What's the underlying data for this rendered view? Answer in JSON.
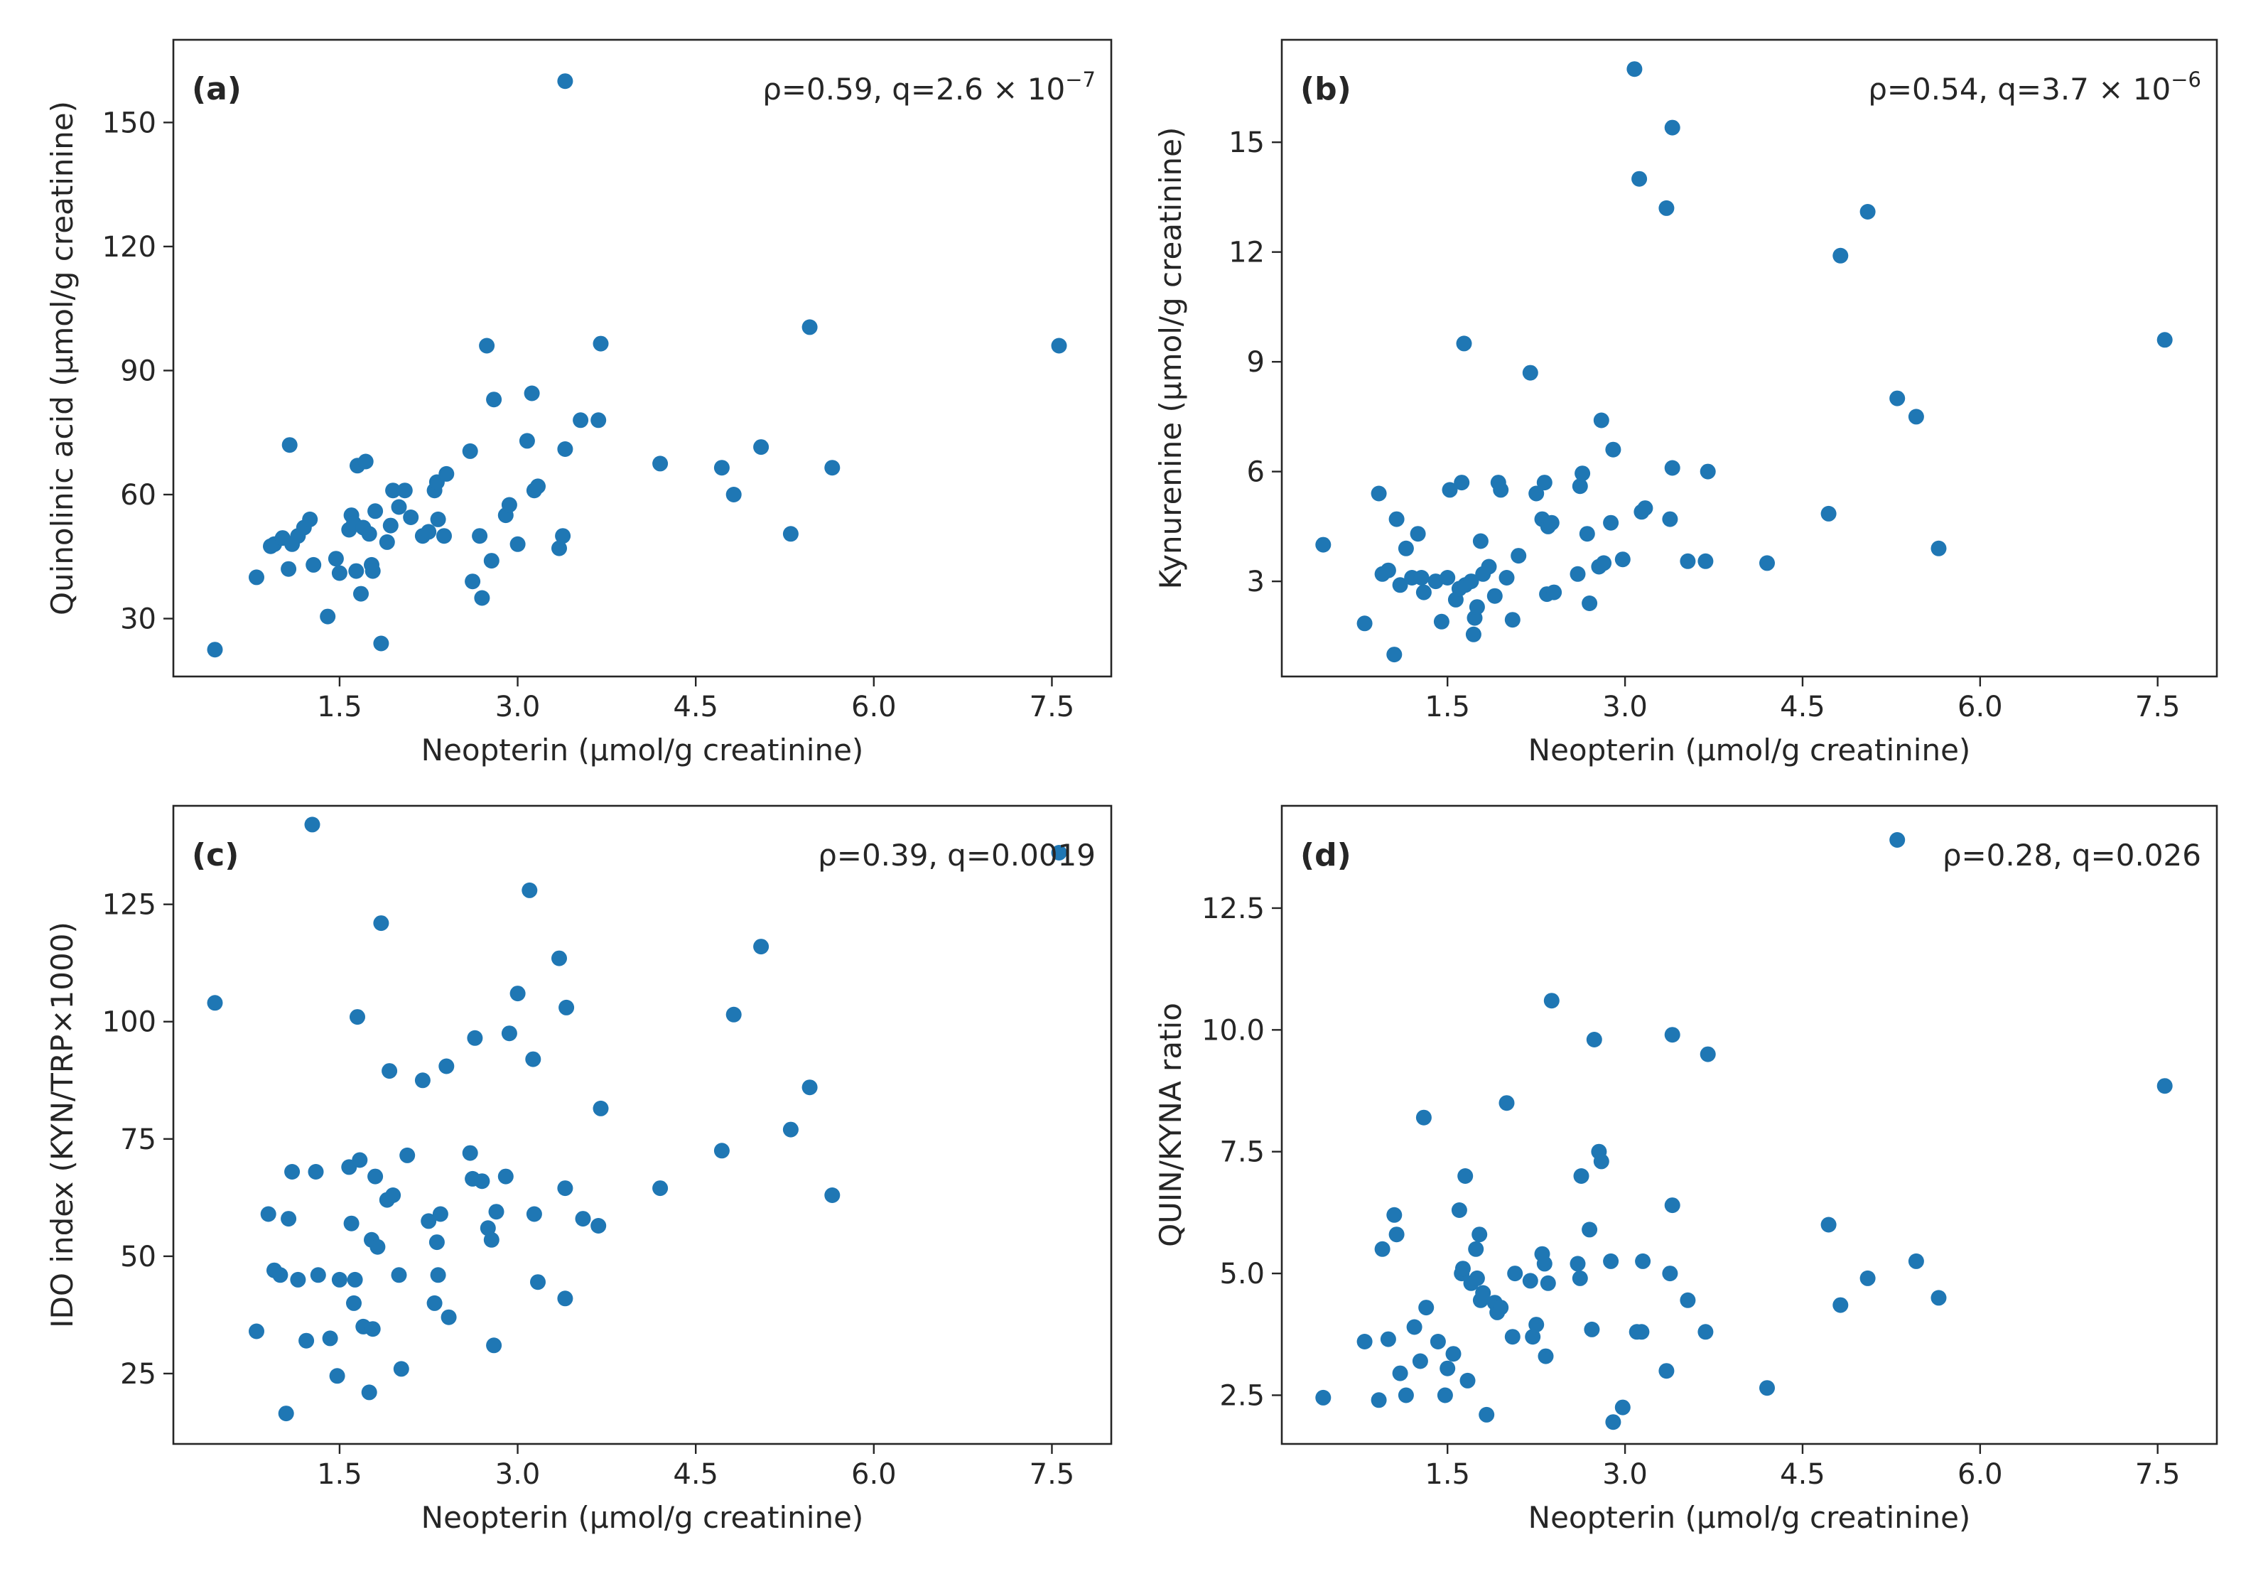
{
  "chart_data": [
    {
      "type": "scatter",
      "panel_label": "(a)",
      "annotation": {
        "prefix": "ρ=0.59, q=2.6 × 10",
        "exp": "−7"
      },
      "xlabel": "Neopterin (μmol/g creatinine)",
      "ylabel": "Quinolinic acid (μmol/g creatinine)",
      "xlim": [
        0.1,
        8.0
      ],
      "ylim": [
        16,
        170
      ],
      "xticks": [
        "1.5",
        "3.0",
        "4.5",
        "6.0",
        "7.5"
      ],
      "yticks": [
        "30",
        "60",
        "90",
        "120",
        "150"
      ],
      "color": "#1f77b4",
      "points": [
        [
          0.45,
          22.5
        ],
        [
          0.8,
          40
        ],
        [
          0.92,
          47.5
        ],
        [
          0.95,
          48
        ],
        [
          1.02,
          49.5
        ],
        [
          1.07,
          42
        ],
        [
          1.08,
          72
        ],
        [
          1.1,
          48
        ],
        [
          1.15,
          50
        ],
        [
          1.2,
          52
        ],
        [
          1.25,
          54
        ],
        [
          1.28,
          43
        ],
        [
          1.4,
          30.5
        ],
        [
          1.47,
          44.5
        ],
        [
          1.5,
          41
        ],
        [
          1.58,
          51.5
        ],
        [
          1.6,
          55
        ],
        [
          1.62,
          53
        ],
        [
          1.64,
          41.5
        ],
        [
          1.65,
          67
        ],
        [
          1.68,
          36
        ],
        [
          1.7,
          52
        ],
        [
          1.72,
          68
        ],
        [
          1.75,
          50.5
        ],
        [
          1.77,
          43
        ],
        [
          1.78,
          41.5
        ],
        [
          1.8,
          56
        ],
        [
          1.85,
          24
        ],
        [
          1.9,
          48.5
        ],
        [
          1.93,
          52.5
        ],
        [
          1.95,
          61
        ],
        [
          2.0,
          57
        ],
        [
          2.05,
          61
        ],
        [
          2.1,
          54.5
        ],
        [
          2.2,
          50
        ],
        [
          2.25,
          51
        ],
        [
          2.3,
          61
        ],
        [
          2.32,
          63
        ],
        [
          2.33,
          54
        ],
        [
          2.38,
          50
        ],
        [
          2.4,
          65
        ],
        [
          2.6,
          70.5
        ],
        [
          2.62,
          39
        ],
        [
          2.68,
          50
        ],
        [
          2.7,
          35
        ],
        [
          2.74,
          96
        ],
        [
          2.78,
          44
        ],
        [
          2.8,
          83
        ],
        [
          2.9,
          55
        ],
        [
          2.93,
          57.5
        ],
        [
          3.0,
          48
        ],
        [
          3.08,
          73
        ],
        [
          3.12,
          84.5
        ],
        [
          3.14,
          61
        ],
        [
          3.17,
          62
        ],
        [
          3.35,
          47
        ],
        [
          3.38,
          50
        ],
        [
          3.4,
          71
        ],
        [
          3.4,
          160
        ],
        [
          3.53,
          78
        ],
        [
          3.68,
          78
        ],
        [
          3.7,
          96.5
        ],
        [
          4.2,
          67.5
        ],
        [
          4.72,
          66.5
        ],
        [
          4.82,
          60
        ],
        [
          5.05,
          71.5
        ],
        [
          5.3,
          50.5
        ],
        [
          5.46,
          100.5
        ],
        [
          5.65,
          66.5
        ],
        [
          7.56,
          96
        ]
      ]
    },
    {
      "type": "scatter",
      "panel_label": "(b)",
      "annotation": {
        "prefix": "ρ=0.54, q=3.7 × 10",
        "exp": "−6"
      },
      "xlabel": "Neopterin (μmol/g creatinine)",
      "ylabel": "Kynurenine (μmol/g creatinine)",
      "xlim": [
        0.1,
        8.0
      ],
      "ylim": [
        0.4,
        17.8
      ],
      "xticks": [
        "1.5",
        "3.0",
        "4.5",
        "6.0",
        "7.5"
      ],
      "yticks": [
        "3",
        "6",
        "9",
        "12",
        "15"
      ],
      "color": "#1f77b4",
      "points": [
        [
          0.45,
          4.0
        ],
        [
          0.8,
          1.85
        ],
        [
          0.92,
          5.4
        ],
        [
          0.95,
          3.2
        ],
        [
          1.0,
          3.3
        ],
        [
          1.05,
          1.0
        ],
        [
          1.07,
          4.7
        ],
        [
          1.1,
          2.9
        ],
        [
          1.15,
          3.9
        ],
        [
          1.2,
          3.1
        ],
        [
          1.25,
          4.3
        ],
        [
          1.28,
          3.1
        ],
        [
          1.3,
          2.7
        ],
        [
          1.4,
          3.0
        ],
        [
          1.45,
          1.9
        ],
        [
          1.5,
          3.1
        ],
        [
          1.52,
          5.5
        ],
        [
          1.57,
          2.5
        ],
        [
          1.6,
          2.8
        ],
        [
          1.62,
          5.7
        ],
        [
          1.64,
          9.5
        ],
        [
          1.65,
          2.9
        ],
        [
          1.7,
          3.0
        ],
        [
          1.72,
          1.55
        ],
        [
          1.73,
          2.0
        ],
        [
          1.75,
          2.3
        ],
        [
          1.78,
          4.1
        ],
        [
          1.8,
          3.2
        ],
        [
          1.85,
          3.4
        ],
        [
          1.9,
          2.6
        ],
        [
          1.93,
          5.7
        ],
        [
          1.95,
          5.5
        ],
        [
          2.0,
          3.1
        ],
        [
          2.05,
          1.95
        ],
        [
          2.1,
          3.7
        ],
        [
          2.2,
          8.7
        ],
        [
          2.25,
          5.4
        ],
        [
          2.3,
          4.7
        ],
        [
          2.32,
          5.7
        ],
        [
          2.34,
          2.65
        ],
        [
          2.35,
          4.5
        ],
        [
          2.38,
          4.6
        ],
        [
          2.4,
          2.7
        ],
        [
          2.6,
          3.2
        ],
        [
          2.62,
          5.6
        ],
        [
          2.64,
          5.95
        ],
        [
          2.68,
          4.3
        ],
        [
          2.7,
          2.4
        ],
        [
          2.78,
          3.4
        ],
        [
          2.8,
          7.4
        ],
        [
          2.82,
          3.5
        ],
        [
          2.88,
          4.6
        ],
        [
          2.9,
          6.6
        ],
        [
          2.98,
          3.6
        ],
        [
          3.08,
          17.0
        ],
        [
          3.12,
          14.0
        ],
        [
          3.14,
          4.9
        ],
        [
          3.17,
          5.0
        ],
        [
          3.35,
          13.2
        ],
        [
          3.38,
          4.7
        ],
        [
          3.4,
          6.1
        ],
        [
          3.4,
          15.4
        ],
        [
          3.53,
          3.55
        ],
        [
          3.68,
          3.55
        ],
        [
          3.7,
          6.0
        ],
        [
          4.2,
          3.5
        ],
        [
          4.72,
          4.85
        ],
        [
          4.82,
          11.9
        ],
        [
          5.05,
          13.1
        ],
        [
          5.3,
          8.0
        ],
        [
          5.46,
          7.5
        ],
        [
          5.65,
          3.9
        ],
        [
          7.56,
          9.6
        ]
      ]
    },
    {
      "type": "scatter",
      "panel_label": "(c)",
      "annotation": {
        "prefix": "ρ=0.39, q=0.0019",
        "exp": ""
      },
      "xlabel": "Neopterin (μmol/g creatinine)",
      "ylabel": "IDO index (KYN/TRP×1000)",
      "xlim": [
        0.1,
        8.0
      ],
      "ylim": [
        10,
        146
      ],
      "xticks": [
        "1.5",
        "3.0",
        "4.5",
        "6.0",
        "7.5"
      ],
      "yticks": [
        "25",
        "50",
        "75",
        "100",
        "125"
      ],
      "color": "#1f77b4",
      "points": [
        [
          0.45,
          104
        ],
        [
          0.8,
          34
        ],
        [
          0.9,
          59
        ],
        [
          0.95,
          47
        ],
        [
          1.0,
          46
        ],
        [
          1.05,
          16.5
        ],
        [
          1.07,
          58
        ],
        [
          1.1,
          68
        ],
        [
          1.15,
          45
        ],
        [
          1.22,
          32
        ],
        [
          1.27,
          142
        ],
        [
          1.3,
          68
        ],
        [
          1.32,
          46
        ],
        [
          1.42,
          32.5
        ],
        [
          1.48,
          24.5
        ],
        [
          1.5,
          45
        ],
        [
          1.58,
          69
        ],
        [
          1.6,
          57
        ],
        [
          1.62,
          40
        ],
        [
          1.63,
          45
        ],
        [
          1.65,
          101
        ],
        [
          1.67,
          70.5
        ],
        [
          1.7,
          35
        ],
        [
          1.75,
          21
        ],
        [
          1.77,
          53.5
        ],
        [
          1.78,
          34.5
        ],
        [
          1.8,
          67
        ],
        [
          1.82,
          52
        ],
        [
          1.85,
          121
        ],
        [
          1.9,
          62
        ],
        [
          1.92,
          89.5
        ],
        [
          1.95,
          63
        ],
        [
          2.0,
          46
        ],
        [
          2.02,
          26
        ],
        [
          2.07,
          71.5
        ],
        [
          2.2,
          87.5
        ],
        [
          2.25,
          57.5
        ],
        [
          2.3,
          40
        ],
        [
          2.32,
          53
        ],
        [
          2.33,
          46
        ],
        [
          2.35,
          59
        ],
        [
          2.4,
          90.5
        ],
        [
          2.42,
          37
        ],
        [
          2.6,
          72
        ],
        [
          2.62,
          66.5
        ],
        [
          2.64,
          96.5
        ],
        [
          2.7,
          66
        ],
        [
          2.75,
          56
        ],
        [
          2.78,
          53.5
        ],
        [
          2.8,
          31
        ],
        [
          2.82,
          59.5
        ],
        [
          2.9,
          67
        ],
        [
          2.93,
          97.5
        ],
        [
          3.0,
          106
        ],
        [
          3.1,
          128
        ],
        [
          3.13,
          92
        ],
        [
          3.14,
          59
        ],
        [
          3.17,
          44.5
        ],
        [
          3.35,
          113.5
        ],
        [
          3.4,
          64.5
        ],
        [
          3.4,
          41
        ],
        [
          3.41,
          103
        ],
        [
          3.55,
          58
        ],
        [
          3.68,
          56.5
        ],
        [
          3.7,
          81.5
        ],
        [
          4.2,
          64.5
        ],
        [
          4.72,
          72.5
        ],
        [
          4.82,
          101.5
        ],
        [
          5.05,
          116
        ],
        [
          5.3,
          77
        ],
        [
          5.46,
          86
        ],
        [
          5.65,
          63
        ],
        [
          7.56,
          136
        ]
      ]
    },
    {
      "type": "scatter",
      "panel_label": "(d)",
      "annotation": {
        "prefix": "ρ=0.28, q=0.026",
        "exp": ""
      },
      "xlabel": "Neopterin (μmol/g creatinine)",
      "ylabel": "QUIN/KYNA ratio",
      "xlim": [
        0.1,
        8.0
      ],
      "ylim": [
        1.5,
        14.6
      ],
      "xticks": [
        "1.5",
        "3.0",
        "4.5",
        "6.0",
        "7.5"
      ],
      "yticks": [
        "2.5",
        "5.0",
        "7.5",
        "10.0",
        "12.5"
      ],
      "color": "#1f77b4",
      "points": [
        [
          0.45,
          2.45
        ],
        [
          0.8,
          3.6
        ],
        [
          0.92,
          2.4
        ],
        [
          0.95,
          5.5
        ],
        [
          1.0,
          3.65
        ],
        [
          1.05,
          6.2
        ],
        [
          1.07,
          5.8
        ],
        [
          1.1,
          2.95
        ],
        [
          1.15,
          2.5
        ],
        [
          1.22,
          3.9
        ],
        [
          1.27,
          3.2
        ],
        [
          1.3,
          8.2
        ],
        [
          1.32,
          4.3
        ],
        [
          1.42,
          3.6
        ],
        [
          1.48,
          2.5
        ],
        [
          1.5,
          3.05
        ],
        [
          1.55,
          3.35
        ],
        [
          1.6,
          6.3
        ],
        [
          1.62,
          5.0
        ],
        [
          1.63,
          5.1
        ],
        [
          1.65,
          7.0
        ],
        [
          1.67,
          2.8
        ],
        [
          1.7,
          4.8
        ],
        [
          1.74,
          5.5
        ],
        [
          1.75,
          4.9
        ],
        [
          1.77,
          5.8
        ],
        [
          1.78,
          4.45
        ],
        [
          1.8,
          4.6
        ],
        [
          1.83,
          2.1
        ],
        [
          1.9,
          4.4
        ],
        [
          1.92,
          4.2
        ],
        [
          1.95,
          4.3
        ],
        [
          2.0,
          8.5
        ],
        [
          2.05,
          3.7
        ],
        [
          2.07,
          5.0
        ],
        [
          2.2,
          4.85
        ],
        [
          2.22,
          3.7
        ],
        [
          2.25,
          3.95
        ],
        [
          2.3,
          5.4
        ],
        [
          2.32,
          5.2
        ],
        [
          2.33,
          3.3
        ],
        [
          2.35,
          4.8
        ],
        [
          2.38,
          10.6
        ],
        [
          2.6,
          5.2
        ],
        [
          2.62,
          4.9
        ],
        [
          2.63,
          7.0
        ],
        [
          2.7,
          5.9
        ],
        [
          2.72,
          3.85
        ],
        [
          2.74,
          9.8
        ],
        [
          2.78,
          7.5
        ],
        [
          2.8,
          7.3
        ],
        [
          2.88,
          5.25
        ],
        [
          2.9,
          1.95
        ],
        [
          2.98,
          2.25
        ],
        [
          3.1,
          3.8
        ],
        [
          3.14,
          3.8
        ],
        [
          3.15,
          5.25
        ],
        [
          3.35,
          3.0
        ],
        [
          3.38,
          5.0
        ],
        [
          3.4,
          6.4
        ],
        [
          3.4,
          9.9
        ],
        [
          3.53,
          4.45
        ],
        [
          3.68,
          3.8
        ],
        [
          3.7,
          9.5
        ],
        [
          4.2,
          2.65
        ],
        [
          4.72,
          6.0
        ],
        [
          4.82,
          4.35
        ],
        [
          5.05,
          4.9
        ],
        [
          5.3,
          13.9
        ],
        [
          5.46,
          5.25
        ],
        [
          5.65,
          4.5
        ],
        [
          7.56,
          8.85
        ]
      ]
    }
  ]
}
